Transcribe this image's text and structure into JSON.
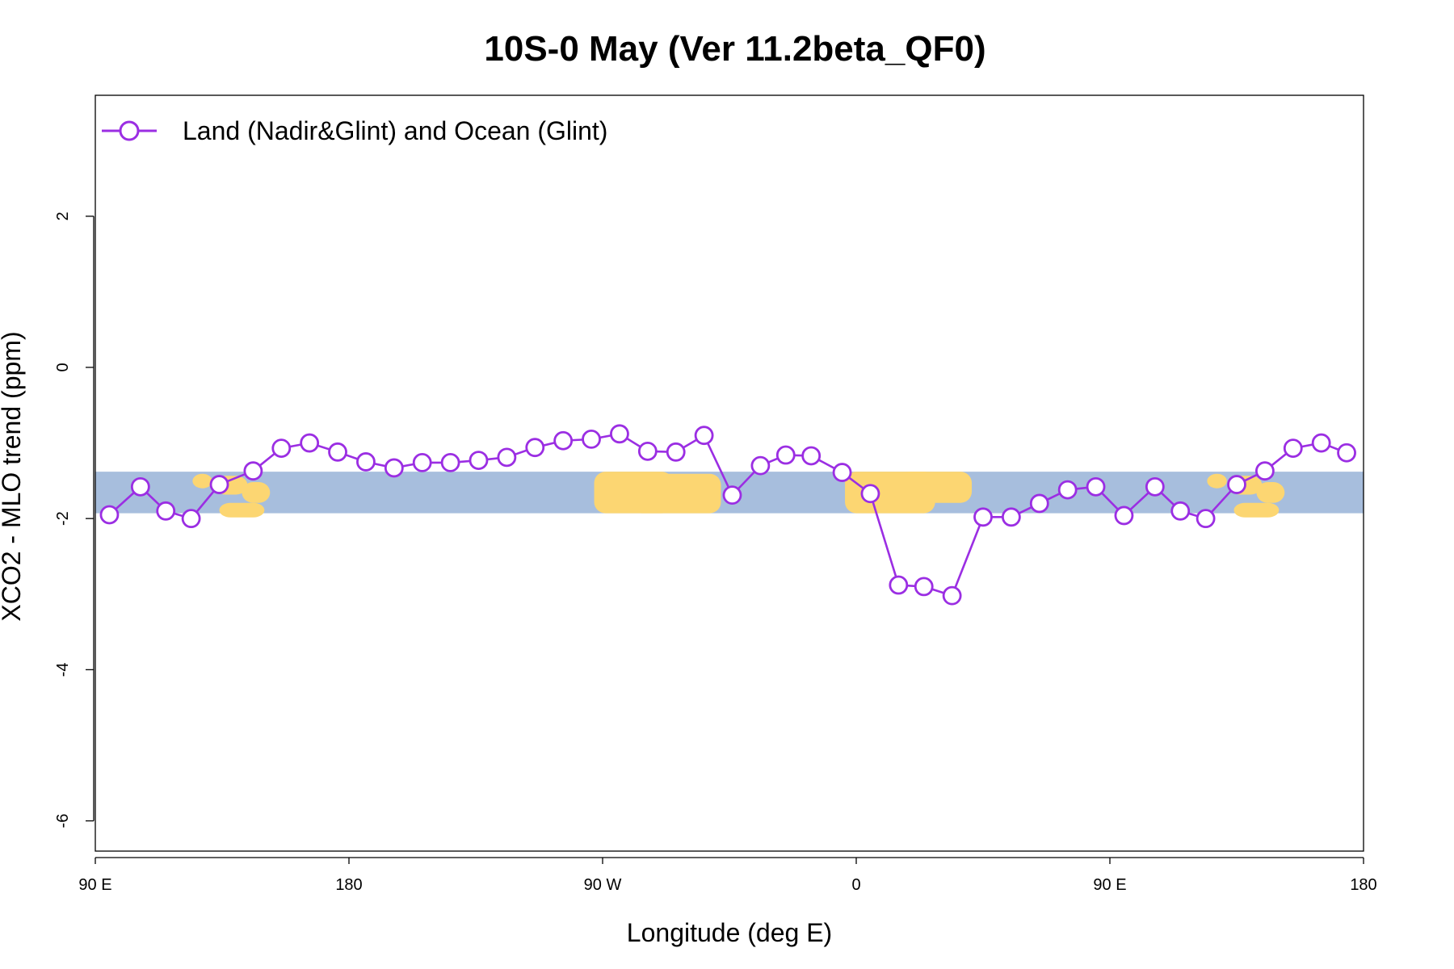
{
  "chart_data": {
    "type": "line",
    "title": "10S-0 May (Ver 11.2beta_QF0)",
    "xlabel": "Longitude (deg E)",
    "ylabel": "XCO2 - MLO trend (ppm)",
    "xlim": [
      90,
      540
    ],
    "ylim": [
      -6.4,
      3.6
    ],
    "x_ticks": [
      {
        "value": 90,
        "label": "90 E"
      },
      {
        "value": 180,
        "label": "180"
      },
      {
        "value": 270,
        "label": "90 W"
      },
      {
        "value": 360,
        "label": "0"
      },
      {
        "value": 450,
        "label": "90 E"
      },
      {
        "value": 540,
        "label": "180"
      }
    ],
    "y_ticks": [
      {
        "value": 2,
        "label": "2"
      },
      {
        "value": 0,
        "label": "0"
      },
      {
        "value": -2,
        "label": "-2"
      },
      {
        "value": -4,
        "label": "-4"
      },
      {
        "value": -6,
        "label": "-6"
      }
    ],
    "map_band": {
      "y_top": -1.38,
      "y_bottom": -1.93,
      "ocean_color": "#a7bedd",
      "land_color": "#fcd672"
    },
    "series": [
      {
        "name": "Land (Nadir&Glint) and Ocean (Glint)",
        "color": "#9b2ee3",
        "x": [
          95,
          106,
          115,
          124,
          134,
          146,
          156,
          166,
          176,
          186,
          196,
          206,
          216,
          226,
          236,
          246,
          256,
          266,
          276,
          286,
          296,
          306,
          316,
          326,
          335,
          344,
          355,
          365,
          375,
          384,
          394,
          405,
          415,
          425,
          435,
          445,
          455,
          466,
          475,
          484,
          495,
          505,
          515,
          525,
          534
        ],
        "y": [
          -1.95,
          -1.58,
          -1.9,
          -2.0,
          -1.55,
          -1.37,
          -1.07,
          -1.0,
          -1.12,
          -1.25,
          -1.33,
          -1.26,
          -1.26,
          -1.23,
          -1.19,
          -1.06,
          -0.97,
          -0.95,
          -0.88,
          -1.11,
          -1.12,
          -0.9,
          -1.69,
          -1.3,
          -1.16,
          -1.17,
          -1.39,
          -1.67,
          -2.88,
          -2.9,
          -3.02,
          -1.98,
          -1.98,
          -1.8,
          -1.62,
          -1.58,
          -1.96,
          -1.58,
          -1.9,
          -2.0,
          -1.55,
          -1.37,
          -1.07,
          -1.0,
          -1.13
        ]
      }
    ]
  }
}
